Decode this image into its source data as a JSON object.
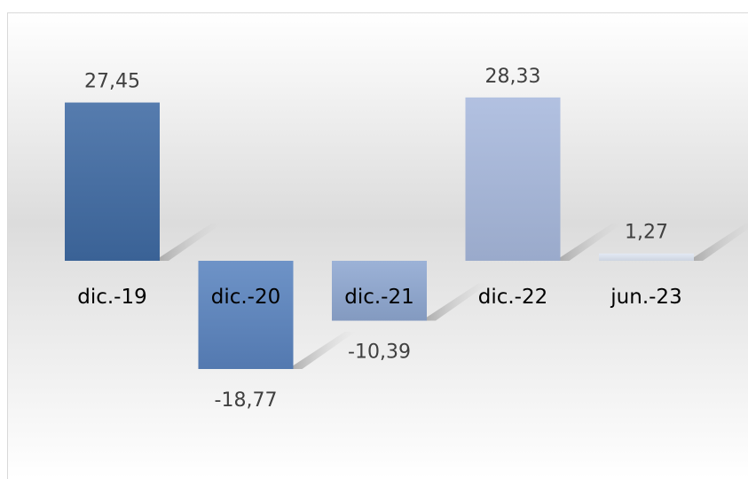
{
  "chart_data": {
    "type": "bar",
    "categories": [
      "dic.-19",
      "dic.-20",
      "dic.-21",
      "dic.-22",
      "jun.-23"
    ],
    "values": [
      27.45,
      -18.77,
      -10.39,
      28.33,
      1.27
    ],
    "value_labels": [
      "27,45",
      "-18,77",
      "-10,39",
      "28,33",
      "1,27"
    ],
    "title": "",
    "xlabel": "",
    "ylabel": "",
    "ylim": [
      -30,
      35
    ],
    "grid": false,
    "legend": "none",
    "bar_colors": [
      "#3f6aa3",
      "#5a84bf",
      "#8ea7d1",
      "#a7b9dd",
      "#dfe6f3"
    ]
  }
}
